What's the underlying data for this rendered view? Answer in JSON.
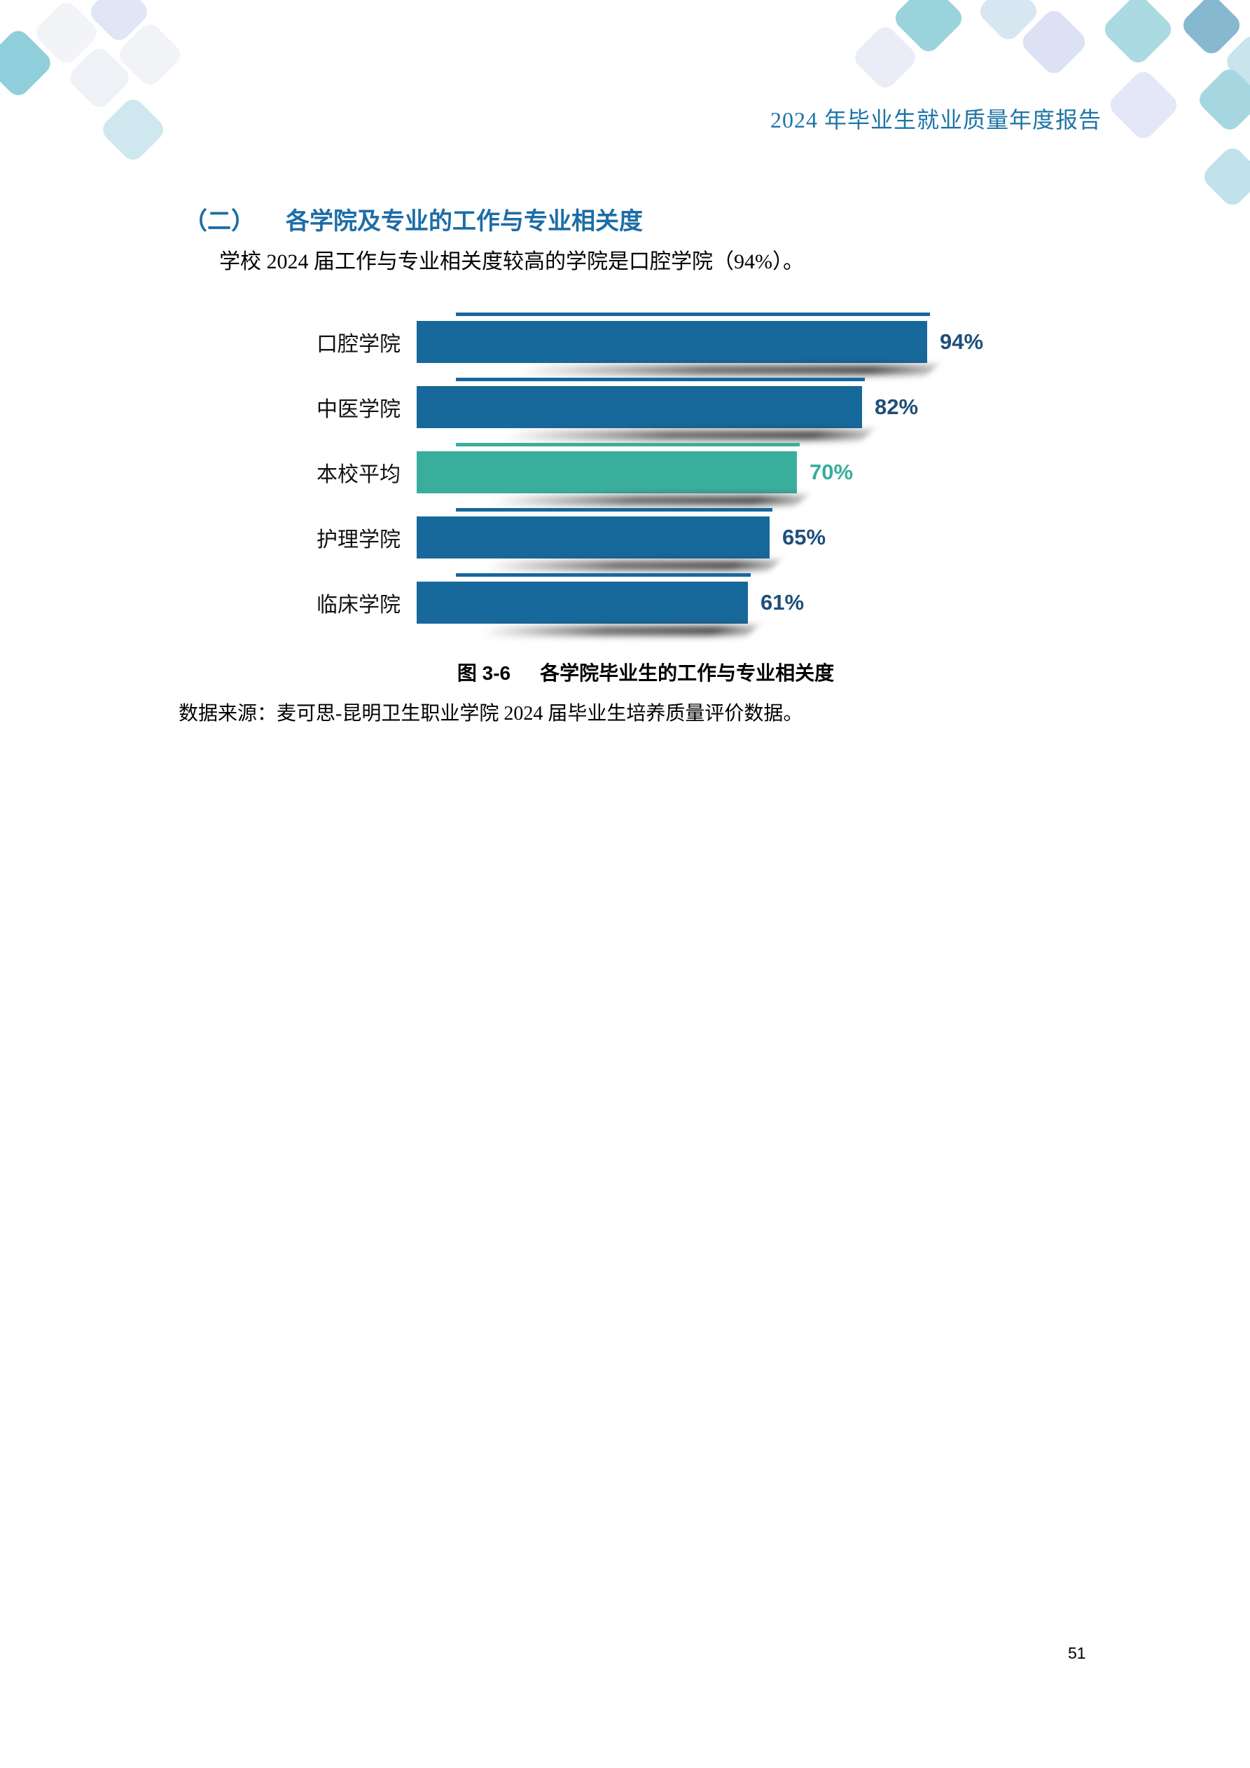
{
  "header": {
    "title": "2024 年毕业生就业质量年度报告"
  },
  "section": {
    "number": "（二）",
    "title": "各学院及专业的工作与专业相关度",
    "paragraph": "学校 2024 届工作与专业相关度较高的学院是口腔学院（94%）。"
  },
  "chart_data": {
    "type": "bar",
    "orientation": "horizontal",
    "title": "图 3-6 各学院毕业生的工作与专业相关度",
    "categories": [
      "口腔学院",
      "中医学院",
      "本校平均",
      "护理学院",
      "临床学院"
    ],
    "values": [
      94,
      82,
      70,
      65,
      61
    ],
    "value_labels": [
      "94%",
      "82%",
      "70%",
      "65%",
      "61%"
    ],
    "highlight_category": "本校平均",
    "bar_color": "#17689B",
    "highlight_color": "#3AAE9D",
    "label_color": "#1F4E79",
    "highlight_label_color": "#38AD9B",
    "xlim": [
      0,
      100
    ],
    "grid": false,
    "legend": false
  },
  "figure": {
    "caption_prefix": "图 3-6",
    "caption_text": "各学院毕业生的工作与专业相关度",
    "source_note": "数据来源：麦可思-昆明卫生职业学院 2024 届毕业生培养质量评价数据。"
  },
  "page": {
    "page_number": "51"
  }
}
